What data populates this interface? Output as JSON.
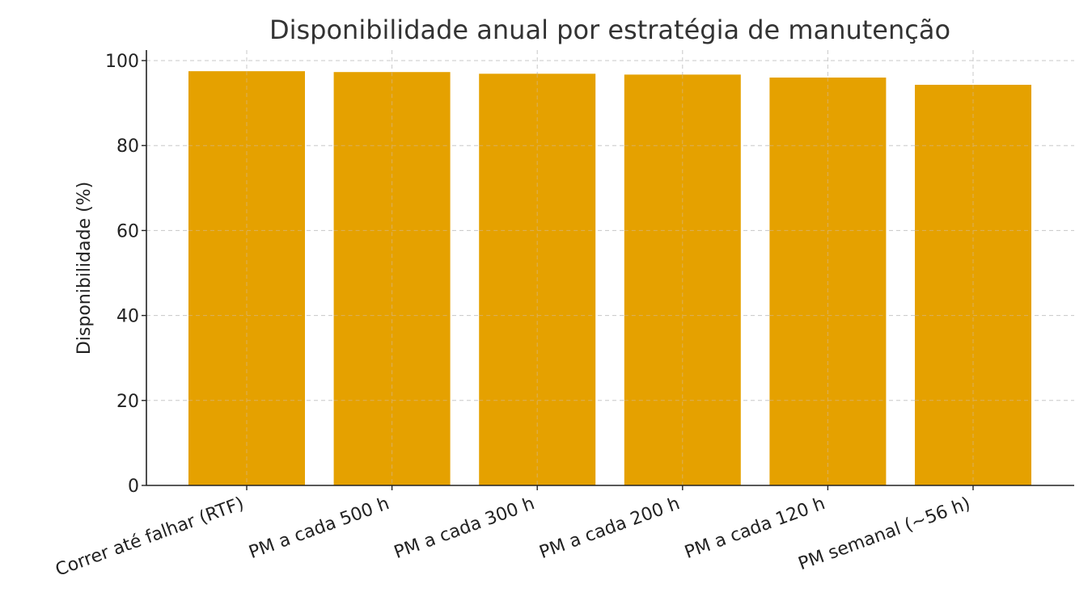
{
  "chart_data": {
    "type": "bar",
    "title": "Disponibilidade anual por estratégia de manutenção",
    "xlabel": "",
    "ylabel": "Disponibilidade (%)",
    "categories": [
      "Correr até falhar (RTF)",
      "PM a cada 500 h",
      "PM a cada 300 h",
      "PM a cada 200 h",
      "PM a cada 120 h",
      "PM semanal (~56 h)"
    ],
    "values": [
      97.5,
      97.3,
      96.9,
      96.7,
      96.0,
      94.3
    ],
    "ylim": [
      0,
      100
    ],
    "yticks": [
      0,
      20,
      40,
      60,
      80,
      100
    ],
    "grid": true,
    "bar_color": "#E5A100"
  }
}
